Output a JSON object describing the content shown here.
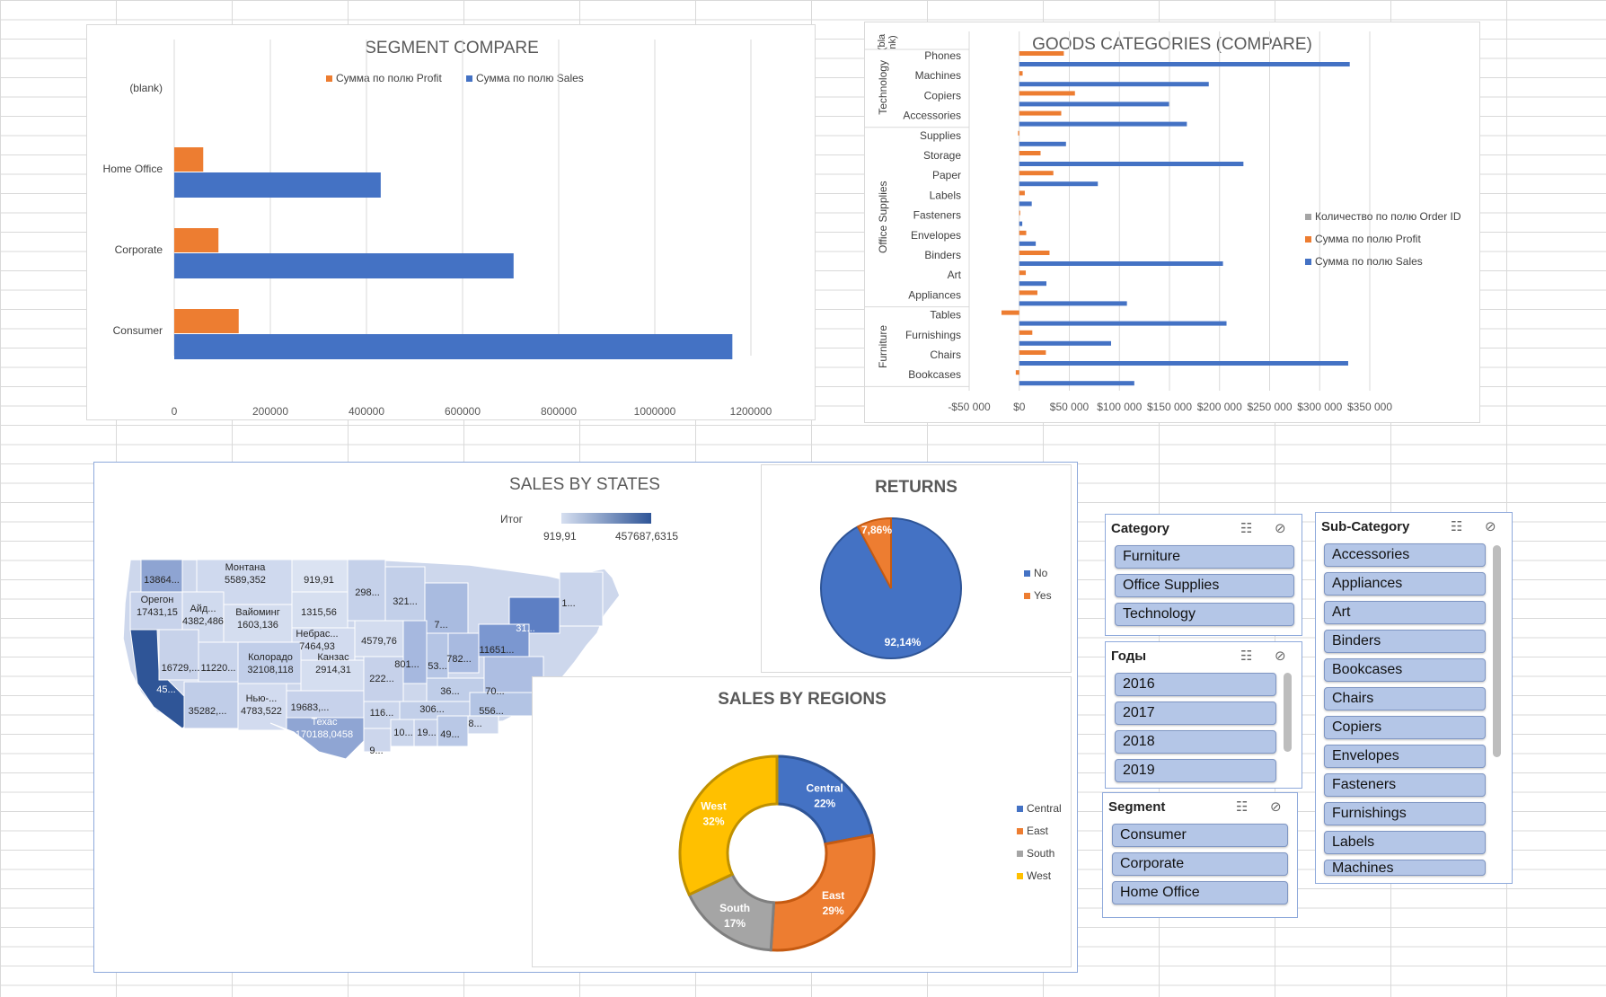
{
  "colors": {
    "blue": "#4472c4",
    "orange": "#ed7d31",
    "gray": "#a5a5a5",
    "yellow": "#ffc000"
  },
  "segment_chart": {
    "chart_data": {
      "type": "bar",
      "title": "SEGMENT COMPARE",
      "categories": [
        "(blank)",
        "Home Office",
        "Corporate",
        "Consumer"
      ],
      "series": [
        {
          "name": "Сумма по полю Profit",
          "values": [
            0,
            60298,
            91979,
            134119
          ]
        },
        {
          "name": "Сумма по полю Sales",
          "values": [
            0,
            429653,
            706146,
            1161401
          ]
        }
      ],
      "xlim": [
        0,
        1200000
      ],
      "ticks": [
        0,
        200000,
        400000,
        600000,
        800000,
        1000000,
        1200000
      ],
      "tick_labels": [
        "0",
        "200000",
        "400000",
        "600000",
        "800000",
        "1000000",
        "1200000"
      ]
    }
  },
  "goods_chart": {
    "chart_data": {
      "type": "bar",
      "title": "GOODS CATEGORIES (COMPARE)",
      "groups": [
        {
          "name": "(blank)",
          "label_lines": [
            "(bla",
            "nk)"
          ],
          "categories": []
        },
        {
          "name": "Technology",
          "categories": [
            "Phones",
            "Machines",
            "Copiers",
            "Accessories"
          ]
        },
        {
          "name": "Office Supplies",
          "categories": [
            "Supplies",
            "Storage",
            "Paper",
            "Labels",
            "Fasteners",
            "Envelopes",
            "Binders",
            "Art",
            "Appliances"
          ]
        },
        {
          "name": "Furniture",
          "categories": [
            "Tables",
            "Furnishings",
            "Chairs",
            "Bookcases"
          ]
        }
      ],
      "categories": [
        "Phones",
        "Machines",
        "Copiers",
        "Accessories",
        "Supplies",
        "Storage",
        "Paper",
        "Labels",
        "Fasteners",
        "Envelopes",
        "Binders",
        "Art",
        "Appliances",
        "Tables",
        "Furnishings",
        "Chairs",
        "Bookcases"
      ],
      "series": [
        {
          "name": "Количество по полю Order ID",
          "values": [
            0,
            0,
            0,
            0,
            0,
            0,
            0,
            0,
            0,
            0,
            0,
            0,
            0,
            0,
            0,
            0,
            0
          ]
        },
        {
          "name": "Сумма по полю Profit",
          "values": [
            44516,
            3385,
            55618,
            41937,
            -1189,
            21279,
            34054,
            5546,
            950,
            6964,
            30222,
            6528,
            18138,
            -17725,
            13059,
            26590,
            -3473
          ]
        },
        {
          "name": "Сумма по полю Sales",
          "values": [
            330007,
            189239,
            149528,
            167380,
            46674,
            223844,
            78479,
            12486,
            3024,
            16476,
            203413,
            27119,
            107532,
            206966,
            91705,
            328449,
            114880
          ]
        }
      ],
      "xlim": [
        -50000,
        350000
      ],
      "ticks": [
        -50000,
        0,
        50000,
        100000,
        150000,
        200000,
        250000,
        300000,
        350000
      ],
      "tick_labels": [
        "-$50 000",
        "$0",
        "$50 000",
        "$100 000",
        "$150 000",
        "$200 000",
        "$250 000",
        "$300 000",
        "$350 000"
      ]
    }
  },
  "states_map": {
    "chart_data": {
      "type": "heatmap",
      "title": "SALES BY STATES",
      "legend": {
        "title": "Итог",
        "min_label": "919,91",
        "max_label": "457687,6315"
      },
      "labels": [
        {
          "name": "Washington",
          "l1": "13864...",
          "value": 138641
        },
        {
          "name": "Montana",
          "l1": "Монтана",
          "l2": "5589,352",
          "value": 5589
        },
        {
          "name": "North Dakota",
          "l1": "919,91",
          "value": 920
        },
        {
          "name": "Minnesota",
          "l1": "298...",
          "value": 29863
        },
        {
          "name": "Oregon",
          "l1": "Орегон",
          "l2": "17431,15",
          "value": 17431
        },
        {
          "name": "Idaho",
          "l1": "Айд...",
          "l2": "4382,486",
          "value": 4382
        },
        {
          "name": "Wyoming",
          "l1": "Вайоминг",
          "l2": "1603,136",
          "value": 1603
        },
        {
          "name": "South Dakota",
          "l1": "1315,56",
          "value": 1316
        },
        {
          "name": "Wisconsin",
          "l1": "321...",
          "value": 32115
        },
        {
          "name": "Michigan",
          "l1": "7...",
          "value": 76270
        },
        {
          "name": "Nebraska",
          "l1": "Небрас...",
          "l2": "7464,93",
          "value": 7465
        },
        {
          "name": "Iowa",
          "l1": "4579,76",
          "value": 4580
        },
        {
          "name": "New York",
          "l1": "31...",
          "value": 310876
        },
        {
          "name": "New England",
          "l1": "1...",
          "value": 19443
        },
        {
          "name": "California",
          "l1": "45...",
          "value": 457688
        },
        {
          "name": "Nevada",
          "l1": "16729,...",
          "value": 16729
        },
        {
          "name": "Utah",
          "l1": "11220...",
          "value": 11220
        },
        {
          "name": "Colorado",
          "l1": "Колорадо",
          "l2": "32108,118",
          "value": 32108
        },
        {
          "name": "Kansas",
          "l1": "Канзас",
          "l2": "2914,31",
          "value": 2914
        },
        {
          "name": "Missouri",
          "l1": "222...",
          "value": 22205
        },
        {
          "name": "Illinois",
          "l1": "801...",
          "value": 80166
        },
        {
          "name": "Indiana",
          "l1": "53...",
          "value": 53555
        },
        {
          "name": "Ohio",
          "l1": "782...",
          "value": 78258
        },
        {
          "name": "Pennsylvania",
          "l1": "11651...",
          "value": 116512
        },
        {
          "name": "Kentucky",
          "l1": "36...",
          "value": 36592
        },
        {
          "name": "Virginia",
          "l1": "70...",
          "value": 70637
        },
        {
          "name": "Arizona",
          "l1": "35282,...",
          "value": 35282
        },
        {
          "name": "New Mexico",
          "l1": "Нью-...",
          "l2": "4783,522",
          "value": 4784
        },
        {
          "name": "Oklahoma",
          "l1": "19683,...",
          "value": 19683
        },
        {
          "name": "Arkansas",
          "l1": "116...",
          "value": 11678
        },
        {
          "name": "Tennessee",
          "l1": "306...",
          "value": 30662
        },
        {
          "name": "North Carolina",
          "l1": "556...",
          "value": 55603
        },
        {
          "name": "Texas",
          "l1": "Техас",
          "l2": "170188,0458",
          "value": 170188
        },
        {
          "name": "Mississippi",
          "l1": "10...",
          "value": 10771
        },
        {
          "name": "Alabama",
          "l1": "19...",
          "value": 19511
        },
        {
          "name": "Georgia",
          "l1": "49...",
          "value": 49096
        },
        {
          "name": "South Carolina",
          "l1": "8...",
          "value": 8482
        },
        {
          "name": "Louisiana",
          "l1": "9...",
          "value": 9217
        }
      ]
    }
  },
  "returns_chart": {
    "chart_data": {
      "type": "pie",
      "title": "RETURNS",
      "slices": [
        {
          "name": "No",
          "value": 92.14,
          "label": "92,14%"
        },
        {
          "name": "Yes",
          "value": 7.86,
          "label": "7,86%"
        }
      ]
    }
  },
  "regions_chart": {
    "chart_data": {
      "type": "pie",
      "title": "SALES BY REGIONS",
      "slices": [
        {
          "name": "Central",
          "value": 22,
          "label": "22%"
        },
        {
          "name": "East",
          "value": 29,
          "label": "29%"
        },
        {
          "name": "South",
          "value": 17,
          "label": "17%"
        },
        {
          "name": "West",
          "value": 32,
          "label": "32%"
        }
      ]
    }
  },
  "slicers": {
    "category": {
      "title": "Category",
      "items": [
        "Furniture",
        "Office Supplies",
        "Technology"
      ]
    },
    "years": {
      "title": "Годы",
      "items": [
        "2016",
        "2017",
        "2018",
        "2019"
      ]
    },
    "segment": {
      "title": "Segment",
      "items": [
        "Consumer",
        "Corporate",
        "Home Office"
      ]
    },
    "subcategory": {
      "title": "Sub-Category",
      "items": [
        "Accessories",
        "Appliances",
        "Art",
        "Binders",
        "Bookcases",
        "Chairs",
        "Copiers",
        "Envelopes",
        "Fasteners",
        "Furnishings",
        "Labels",
        "Machines"
      ]
    }
  }
}
